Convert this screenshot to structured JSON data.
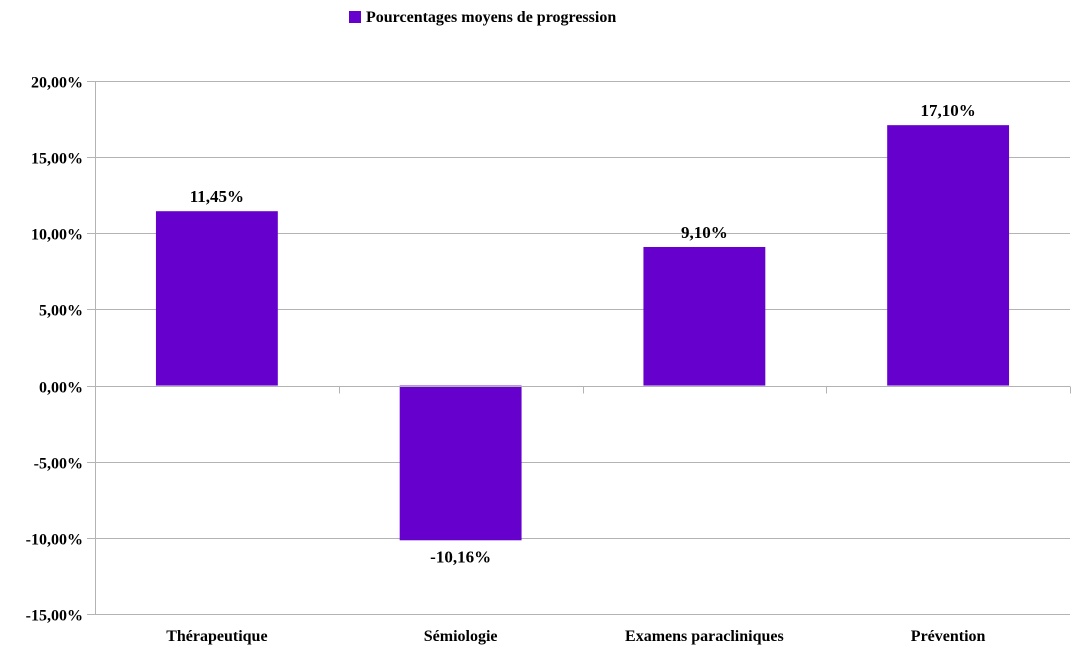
{
  "chart_data": {
    "type": "bar",
    "categories": [
      "Thérapeutique",
      "Sémiologie",
      "Examens paracliniques",
      "Prévention"
    ],
    "series": [
      {
        "name": "Pourcentages moyens de progression",
        "values": [
          11.45,
          -10.16,
          9.1,
          17.1
        ],
        "labels": [
          "11,45%",
          "-10,16%",
          "9,10%",
          "17,10%"
        ],
        "color": "#6600cc"
      }
    ],
    "ylim": [
      -15,
      20
    ],
    "yticks": [
      20,
      15,
      10,
      5,
      0,
      -5,
      -10,
      -15
    ],
    "ytick_labels": [
      "20,00%",
      "15,00%",
      "10,00%",
      "5,00%",
      "0,00%",
      "-5,00%",
      "-10,00%",
      "-15,00%"
    ],
    "grid": true,
    "legend": "top-center"
  }
}
